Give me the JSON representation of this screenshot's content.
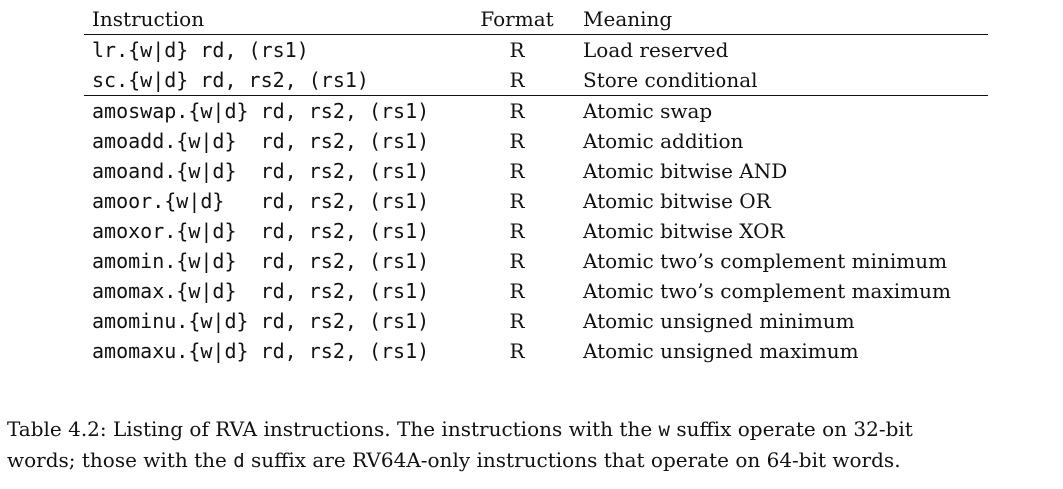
{
  "table": {
    "headers": {
      "instruction": "Instruction",
      "format": "Format",
      "meaning": "Meaning"
    },
    "group1": [
      {
        "instruction": "lr.{w|d} rd, (rs1)",
        "format": "R",
        "meaning": "Load reserved"
      },
      {
        "instruction": "sc.{w|d} rd, rs2, (rs1)",
        "format": "R",
        "meaning": "Store conditional"
      }
    ],
    "group2": [
      {
        "instruction": "amoswap.{w|d} rd, rs2, (rs1)",
        "format": "R",
        "meaning": "Atomic swap"
      },
      {
        "instruction": "amoadd.{w|d}  rd, rs2, (rs1)",
        "format": "R",
        "meaning": "Atomic addition"
      },
      {
        "instruction": "amoand.{w|d}  rd, rs2, (rs1)",
        "format": "R",
        "meaning": "Atomic bitwise AND"
      },
      {
        "instruction": "amoor.{w|d}   rd, rs2, (rs1)",
        "format": "R",
        "meaning": "Atomic bitwise OR"
      },
      {
        "instruction": "amoxor.{w|d}  rd, rs2, (rs1)",
        "format": "R",
        "meaning": "Atomic bitwise XOR"
      },
      {
        "instruction": "amomin.{w|d}  rd, rs2, (rs1)",
        "format": "R",
        "meaning": "Atomic two’s complement minimum"
      },
      {
        "instruction": "amomax.{w|d}  rd, rs2, (rs1)",
        "format": "R",
        "meaning": "Atomic two’s complement maximum"
      },
      {
        "instruction": "amominu.{w|d} rd, rs2, (rs1)",
        "format": "R",
        "meaning": "Atomic unsigned minimum"
      },
      {
        "instruction": "amomaxu.{w|d} rd, rs2, (rs1)",
        "format": "R",
        "meaning": "Atomic unsigned maximum"
      }
    ]
  },
  "caption": {
    "part1": "Table 4.2: Listing of RVA instructions. The instructions with the ",
    "w_code": "w",
    "part2": " suffix operate on 32-bit",
    "part3": "words; those with the ",
    "d_code": "d",
    "part4": " suffix are RV64A-only instructions that operate on 64-bit words."
  }
}
